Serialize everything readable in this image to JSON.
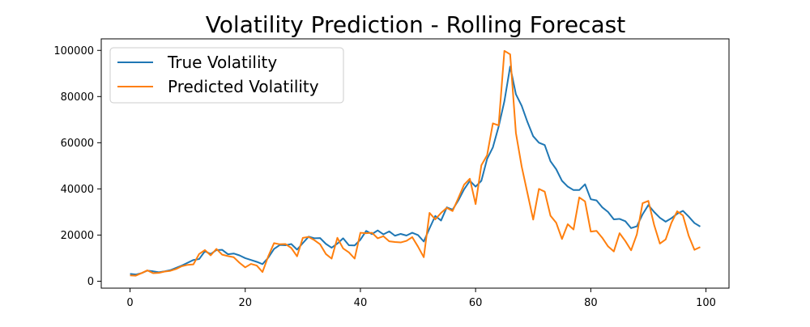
{
  "chart_data": {
    "type": "line",
    "title": "Volatility Prediction - Rolling Forecast",
    "xlabel": "",
    "ylabel": "",
    "xlim": [
      -5,
      104
    ],
    "ylim": [
      -3000,
      105000
    ],
    "xticks": [
      0,
      20,
      40,
      60,
      80,
      100
    ],
    "yticks": [
      0,
      20000,
      40000,
      60000,
      80000,
      100000
    ],
    "grid": false,
    "legend_position": "top-left",
    "x": [
      0,
      1,
      2,
      3,
      4,
      5,
      6,
      7,
      8,
      9,
      10,
      11,
      12,
      13,
      14,
      15,
      16,
      17,
      18,
      19,
      20,
      21,
      22,
      23,
      24,
      25,
      26,
      27,
      28,
      29,
      30,
      31,
      32,
      33,
      34,
      35,
      36,
      37,
      38,
      39,
      40,
      41,
      42,
      43,
      44,
      45,
      46,
      47,
      48,
      49,
      50,
      51,
      52,
      53,
      54,
      55,
      56,
      57,
      58,
      59,
      60,
      61,
      62,
      63,
      64,
      65,
      66,
      67,
      68,
      69,
      70,
      71,
      72,
      73,
      74,
      75,
      76,
      77,
      78,
      79,
      80,
      81,
      82,
      83,
      84,
      85,
      86,
      87,
      88,
      89,
      90,
      91,
      92,
      93,
      94,
      95,
      96,
      97,
      98,
      99
    ],
    "series": [
      {
        "name": "True Volatility",
        "color": "#1f77b4",
        "values": [
          3200,
          2900,
          3500,
          4600,
          4300,
          3900,
          4300,
          4800,
          5800,
          6800,
          8000,
          9200,
          9600,
          13000,
          11800,
          13500,
          13600,
          11700,
          12000,
          11200,
          10000,
          9200,
          8400,
          7400,
          10200,
          14000,
          15700,
          15600,
          16100,
          13700,
          16500,
          19300,
          18600,
          18700,
          16200,
          14500,
          16300,
          18600,
          15600,
          15500,
          18000,
          21800,
          20400,
          22000,
          20300,
          21600,
          19700,
          20500,
          19800,
          21000,
          20000,
          17200,
          22900,
          28300,
          26300,
          32000,
          31000,
          35000,
          39800,
          43500,
          41000,
          43500,
          53000,
          58000,
          67000,
          78000,
          93000,
          81000,
          76000,
          69000,
          62800,
          60000,
          59000,
          52000,
          48500,
          43500,
          41000,
          39500,
          39500,
          42000,
          35500,
          35000,
          32000,
          30000,
          26800,
          27000,
          26000,
          23000,
          23800,
          29000,
          33000,
          30000,
          27500,
          25800,
          27300,
          29200,
          30500,
          28000,
          25200,
          23700
        ]
      },
      {
        "name": "Predicted Volatility",
        "color": "#ff7f0e",
        "values": [
          2500,
          2400,
          3500,
          4700,
          3500,
          3600,
          4200,
          4500,
          5300,
          6500,
          7100,
          7300,
          11800,
          13500,
          11200,
          14000,
          11500,
          10900,
          10400,
          8000,
          6000,
          7500,
          6800,
          4000,
          10800,
          16500,
          16000,
          16100,
          14400,
          10800,
          18800,
          19200,
          17800,
          16000,
          11800,
          9800,
          18800,
          14200,
          12500,
          9800,
          21000,
          20800,
          21000,
          18600,
          19500,
          17300,
          17000,
          16800,
          17500,
          19100,
          15000,
          10400,
          29600,
          26800,
          29600,
          31800,
          30400,
          36000,
          41800,
          44400,
          33400,
          50200,
          54600,
          68400,
          67500,
          99800,
          98300,
          64200,
          49700,
          38200,
          26700,
          40000,
          38800,
          28400,
          25300,
          18300,
          24700,
          22400,
          36300,
          34600,
          21500,
          21800,
          18800,
          15100,
          12900,
          20800,
          17400,
          13400,
          20300,
          33800,
          34800,
          24400,
          16300,
          18100,
          25300,
          30300,
          28500,
          19700,
          13600,
          14800
        ]
      }
    ]
  }
}
